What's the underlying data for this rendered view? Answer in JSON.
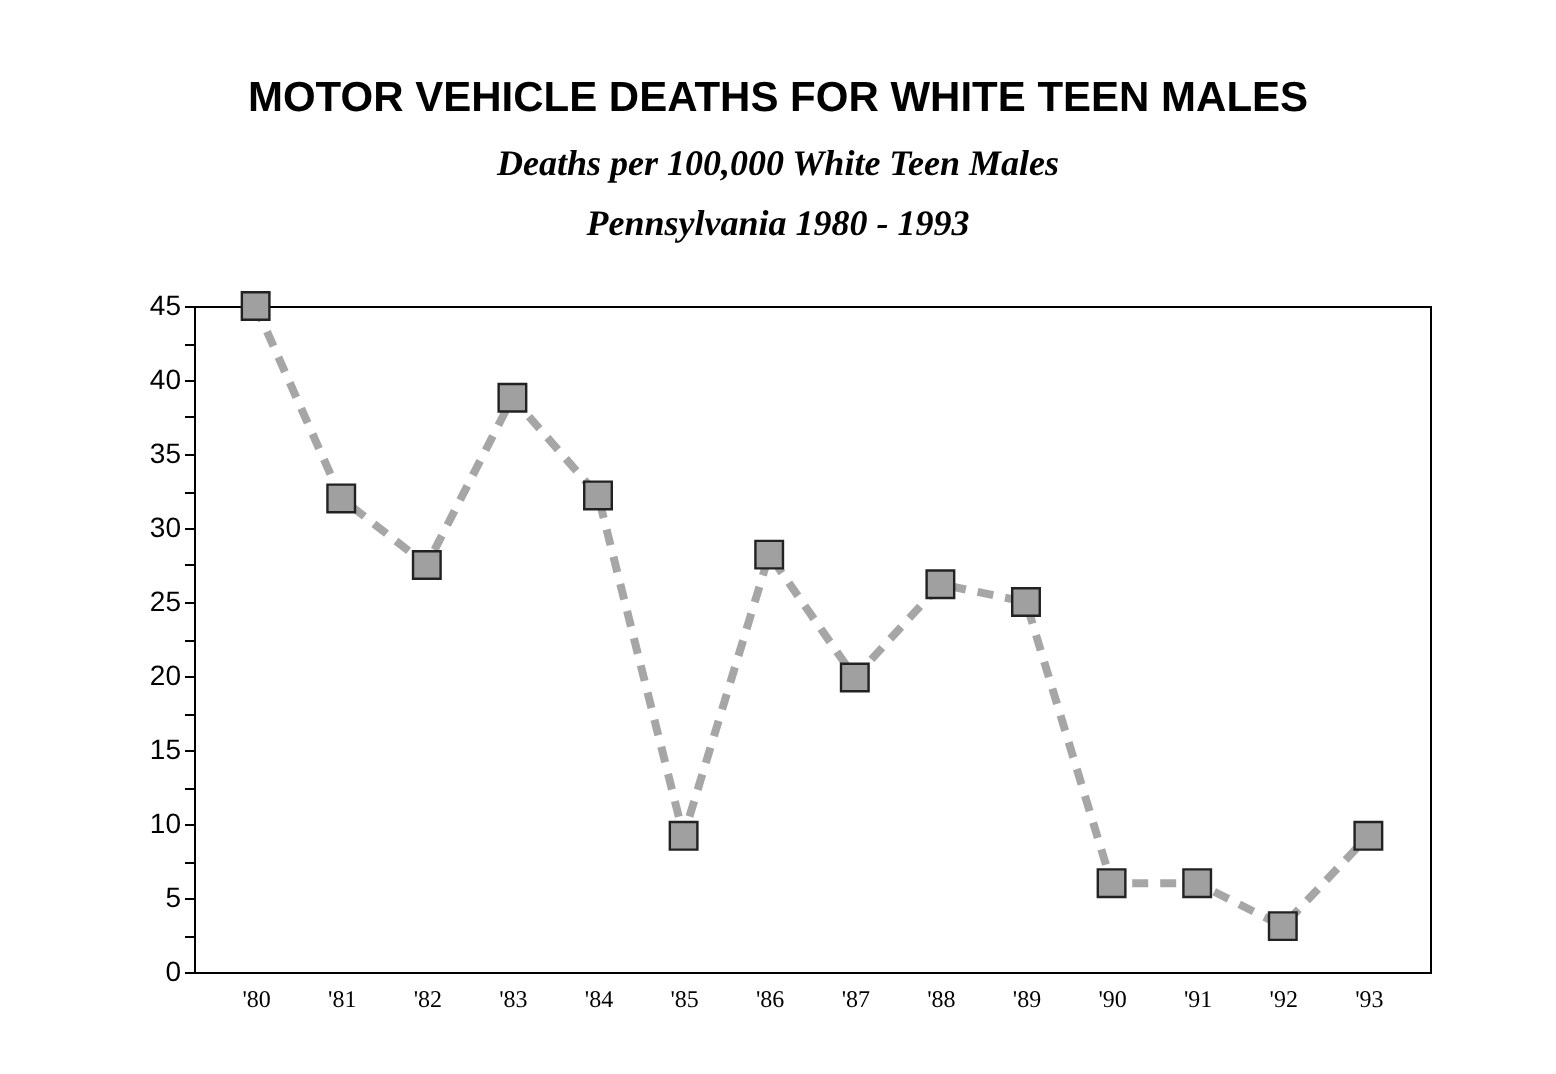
{
  "chart_data": {
    "type": "line",
    "title": "MOTOR VEHICLE DEATHS FOR WHITE TEEN MALES",
    "subtitle": "Deaths per 100,000 White Teen Males",
    "annotations": [
      "Pennsylvania 1980 - 1993"
    ],
    "categories": [
      "'80",
      "'81",
      "'82",
      "'83",
      "'84",
      "'85",
      "'86",
      "'87",
      "'88",
      "'89",
      "'90",
      "'91",
      "'92",
      "'93"
    ],
    "series": [
      {
        "color": "#a6a6a6",
        "values": [
          45,
          32,
          27.5,
          38.8,
          32.2,
          9.2,
          28.2,
          19.9,
          26.2,
          25,
          6,
          6,
          3.1,
          9.2
        ]
      }
    ],
    "ylim": [
      0,
      45
    ],
    "yticks": [
      0,
      {
        "value": 2.5,
        "label": null
      },
      5,
      {
        "value": 7.5,
        "label": null
      },
      10,
      {
        "value": 12.5,
        "label": null
      },
      15,
      {
        "value": 17.5,
        "label": null
      },
      20,
      {
        "value": 22.5,
        "label": null
      },
      25,
      {
        "value": 27.5,
        "label": null
      },
      30,
      {
        "value": 32.5,
        "label": null
      },
      35,
      {
        "value": 37.5,
        "label": null
      },
      40,
      {
        "value": 42.5,
        "label": null
      },
      45
    ],
    "grid": false,
    "legend": false,
    "marker": "square",
    "line_style": "dashed"
  }
}
